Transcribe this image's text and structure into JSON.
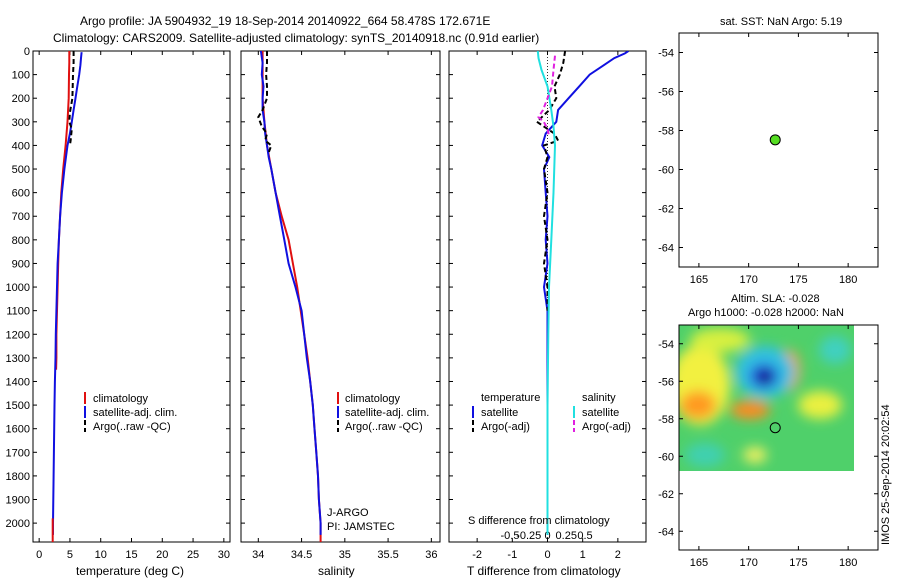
{
  "header": {
    "line1": "Argo profile: JA 5904932_19 18-Sep-2014 20140922_664 58.478S 172.671E",
    "line2": "Climatology: CARS2009. Satellite-adjusted climatology: synTS_20140918.nc (0.91d earlier)"
  },
  "colors": {
    "climatology": "#e01010",
    "satellite": "#1010e0",
    "argo": "#000000",
    "salinity_sat": "#20e0e0",
    "salinity_argo": "#e020e0",
    "float_marker": "#55dd22"
  },
  "chart_data": [
    {
      "id": "temperature",
      "type": "line",
      "xlabel": "temperature (deg C)",
      "ylabel": "",
      "xlim": [
        -1,
        31
      ],
      "ylim": [
        2080,
        0
      ],
      "xticks": [
        0,
        5,
        10,
        15,
        20,
        25,
        30
      ],
      "xticklabels": [
        "0",
        "5",
        "10",
        "15",
        "20",
        "25",
        "30"
      ],
      "yticks": [
        0,
        100,
        200,
        300,
        400,
        500,
        600,
        700,
        800,
        900,
        1000,
        1100,
        1200,
        1300,
        1400,
        1500,
        1600,
        1700,
        1800,
        1900,
        2000
      ],
      "yticklabels": [
        "0",
        "100",
        "200",
        "300",
        "400",
        "500",
        "600",
        "700",
        "800",
        "900",
        "1000",
        "1100",
        "1200",
        "1300",
        "1400",
        "1500",
        "1600",
        "1700",
        "1800",
        "1900",
        "2000"
      ],
      "legend": [
        "climatology",
        "satellite-adj. clim.",
        "Argo(..raw -QC)"
      ],
      "series": [
        {
          "name": "climatology",
          "color": "#e01010",
          "width": 2,
          "dash": "",
          "depth": [
            0,
            50,
            100,
            200,
            300,
            400,
            500,
            600,
            700,
            800,
            900,
            1000,
            1100,
            1200,
            1300,
            1350
          ],
          "values": [
            4.9,
            4.9,
            4.85,
            4.8,
            4.6,
            4.3,
            3.9,
            3.6,
            3.4,
            3.2,
            3.1,
            3.0,
            2.9,
            2.8,
            2.8,
            2.75
          ]
        },
        {
          "name": "satellite-adj. clim.",
          "color": "#1010e0",
          "width": 2,
          "dash": "",
          "depth": [
            5,
            30,
            60,
            100,
            150,
            200,
            250,
            300,
            350,
            400,
            500,
            600,
            700,
            800,
            900,
            1000,
            1100,
            1200,
            1300,
            1400,
            1500,
            1600,
            1700,
            1800,
            1900,
            2000,
            2050
          ],
          "values": [
            6.9,
            6.8,
            6.7,
            6.5,
            6.2,
            5.9,
            5.6,
            5.3,
            5.0,
            4.6,
            4.1,
            3.7,
            3.4,
            3.2,
            3.0,
            2.9,
            2.8,
            2.7,
            2.65,
            2.55,
            2.5,
            2.45,
            2.4,
            2.35,
            2.3,
            2.25,
            2.25
          ]
        },
        {
          "name": "Argo(..raw -QC)",
          "color": "#000000",
          "width": 2,
          "dash": "5,3",
          "depth": [
            0,
            50,
            100,
            150,
            200,
            260,
            300,
            330,
            380,
            400
          ],
          "values": [
            5.6,
            5.6,
            5.5,
            5.45,
            5.4,
            5.0,
            4.9,
            5.3,
            5.1,
            5.0
          ]
        },
        {
          "name": "climatology-deep",
          "color": "#e01010",
          "width": 2,
          "dash": "",
          "depth": [
            1980,
            2080
          ],
          "values": [
            2.2,
            2.2
          ]
        }
      ]
    },
    {
      "id": "salinity",
      "type": "line",
      "xlabel": "salinity",
      "xlim": [
        33.8,
        36.1
      ],
      "ylim": [
        2080,
        0
      ],
      "xticks": [
        34,
        34.5,
        35,
        35.5,
        36
      ],
      "xticklabels": [
        "34",
        "34.5",
        "35",
        "35.5",
        "36"
      ],
      "legend": [
        "climatology",
        "satellite-adj. clim.",
        "Argo(..raw -QC)"
      ],
      "annotation": [
        "J-ARGO",
        "PI: JAMSTEC"
      ],
      "series": [
        {
          "name": "climatology",
          "color": "#e01010",
          "width": 2,
          "dash": "",
          "depth": [
            0,
            100,
            200,
            300,
            400,
            500,
            600,
            700,
            800,
            900,
            1000,
            1100,
            1200,
            1300,
            1400,
            1500,
            1600,
            1700,
            1800,
            1900,
            2000,
            2080
          ],
          "values": [
            34.05,
            34.05,
            34.05,
            34.07,
            34.1,
            34.15,
            34.2,
            34.27,
            34.35,
            34.4,
            34.45,
            34.49,
            34.53,
            34.57,
            34.6,
            34.63,
            34.65,
            34.67,
            34.69,
            34.7,
            34.72,
            34.72
          ]
        },
        {
          "name": "satellite-adj. clim.",
          "color": "#1010e0",
          "width": 2,
          "dash": "",
          "depth": [
            0,
            50,
            100,
            150,
            200,
            250,
            300,
            350,
            400,
            450,
            500,
            600,
            700,
            800,
            900,
            1000,
            1100,
            1200,
            1300,
            1400,
            1500,
            1600,
            1700,
            1800,
            1900,
            2000,
            2050
          ],
          "values": [
            34.03,
            34.05,
            34.04,
            34.06,
            34.05,
            34.05,
            34.07,
            34.08,
            34.1,
            34.12,
            34.15,
            34.2,
            34.25,
            34.3,
            34.35,
            34.43,
            34.5,
            34.53,
            34.56,
            34.6,
            34.63,
            34.65,
            34.67,
            34.69,
            34.7,
            34.72,
            34.72
          ]
        },
        {
          "name": "Argo(..raw -QC)",
          "color": "#000000",
          "width": 2,
          "dash": "5,3",
          "depth": [
            0,
            50,
            100,
            150,
            200,
            250,
            280,
            320,
            350,
            380,
            400,
            430
          ],
          "values": [
            34.1,
            34.1,
            34.09,
            34.1,
            34.1,
            34.05,
            34.0,
            34.04,
            34.1,
            34.08,
            34.15,
            34.12
          ]
        }
      ]
    },
    {
      "id": "difference",
      "type": "line",
      "xlabel": "T difference from climatology",
      "xlim": [
        -2.8,
        2.8
      ],
      "ylim": [
        2080,
        0
      ],
      "xticks": [
        -2,
        -1,
        0,
        1,
        2
      ],
      "xticklabels": [
        "-2",
        "-1",
        "0",
        "1",
        "2"
      ],
      "top_axis_label": "S difference from climatology",
      "s_ticks": [
        -0.5,
        -0.25,
        0,
        0.25,
        0.5
      ],
      "s_ticklabels": [
        "-0.5",
        "-0.25",
        "0",
        "0.25",
        "0.5"
      ],
      "legend_headers": [
        "temperature",
        "salinity"
      ],
      "legend": [
        "satellite",
        "Argo(-adj)",
        "satellite",
        "Argo(-adj)"
      ],
      "series": [
        {
          "name": "temperature satellite",
          "color": "#1010e0",
          "width": 2,
          "dash": "",
          "depth": [
            0,
            10,
            30,
            60,
            100,
            150,
            200,
            250,
            300,
            350,
            400,
            450,
            500,
            600,
            700,
            800,
            900,
            1000,
            1100,
            1200,
            1400,
            1600,
            1800,
            2000,
            2050
          ],
          "values": [
            2.3,
            2.2,
            1.9,
            1.6,
            1.2,
            0.9,
            0.6,
            0.3,
            0.25,
            -0.05,
            -0.15,
            0.05,
            -0.1,
            -0.05,
            0.0,
            -0.05,
            0.0,
            -0.1,
            0.0,
            0.0,
            0.0,
            0.0,
            0.0,
            0.0,
            0.0
          ]
        },
        {
          "name": "temperature Argo(-adj)",
          "color": "#000000",
          "width": 2,
          "dash": "5,3",
          "depth": [
            0,
            50,
            100,
            150,
            200,
            250,
            300,
            350,
            380,
            400,
            450,
            500,
            600,
            700,
            800,
            900,
            1000,
            1100
          ],
          "values": [
            0.5,
            0.45,
            0.35,
            0.2,
            0.25,
            0.05,
            -0.3,
            0.2,
            0.3,
            -0.1,
            0.0,
            -0.1,
            0.0,
            -0.1,
            0.0,
            -0.1,
            0.0,
            0.0
          ]
        },
        {
          "name": "salinity satellite",
          "color": "#20e0e0",
          "width": 2,
          "dash": "",
          "depth": [
            0,
            30,
            80,
            150,
            250,
            320,
            400,
            600,
            800,
            1000,
            1200,
            1500,
            1800,
            2050
          ],
          "values": [
            -0.13,
            -0.12,
            -0.08,
            0.0,
            0.05,
            0.08,
            0.1,
            0.08,
            0.05,
            0.02,
            0.01,
            0.0,
            0.0,
            0.0
          ]
        },
        {
          "name": "salinity Argo(-adj)",
          "color": "#e020e0",
          "width": 2,
          "dash": "5,3",
          "depth": [
            20,
            80,
            150,
            200,
            250,
            280,
            300,
            330,
            360
          ],
          "values": [
            0.1,
            0.08,
            0.06,
            0.0,
            -0.06,
            -0.12,
            -0.05,
            0.0,
            0.02
          ]
        }
      ]
    },
    {
      "id": "sst_map",
      "type": "scatter",
      "title": "sat. SST: NaN Argo: 5.19",
      "xlim": [
        163,
        183
      ],
      "ylim": [
        -65,
        -53
      ],
      "xticks": [
        165,
        170,
        175,
        180
      ],
      "xticklabels": [
        "165",
        "170",
        "175",
        "180"
      ],
      "yticks": [
        -54,
        -56,
        -58,
        -60,
        -62,
        -64
      ],
      "yticklabels": [
        "-54",
        "-56",
        "-58",
        "-60",
        "-62",
        "-64"
      ],
      "points": [
        {
          "lon": 172.671,
          "lat": -58.478
        }
      ]
    },
    {
      "id": "sla_map",
      "type": "heatmap",
      "title_line1": "Altim. SLA: -0.028",
      "title_line2": "Argo h1000: -0.028 h2000: NaN",
      "xlim": [
        163,
        183
      ],
      "ylim": [
        -65,
        -53
      ],
      "xticks": [
        165,
        170,
        175,
        180
      ],
      "xticklabels": [
        "165",
        "170",
        "175",
        "180"
      ],
      "yticks": [
        -54,
        -56,
        -58,
        -60,
        -62,
        -64
      ],
      "yticklabels": [
        "-54",
        "-56",
        "-58",
        "-60",
        "-62",
        "-64"
      ],
      "data_extent": {
        "lon": [
          163,
          180
        ],
        "lat": [
          -60.2,
          -53
        ]
      },
      "points": [
        {
          "lon": 172.671,
          "lat": -58.478
        }
      ]
    }
  ],
  "footer_stamp": "IMOS 25-Sep-2014 20:02:54"
}
